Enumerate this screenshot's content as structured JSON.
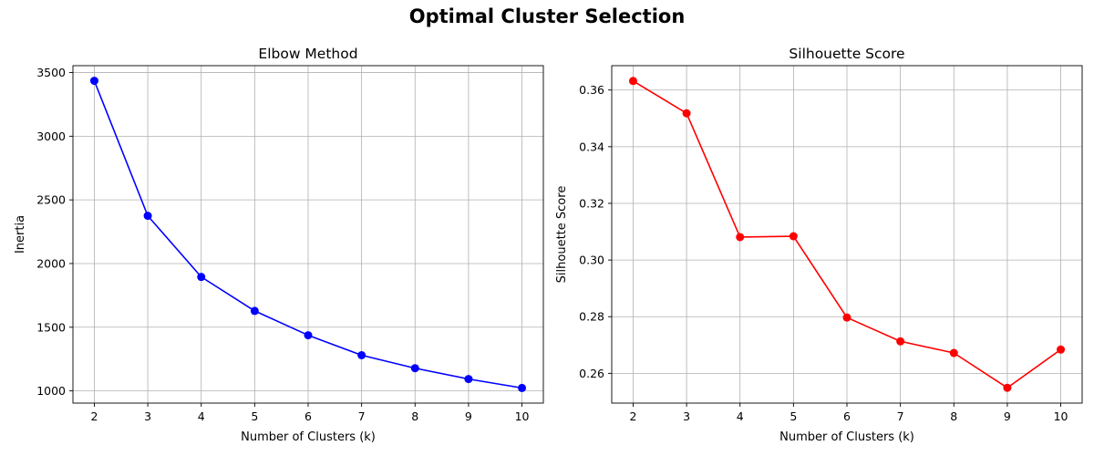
{
  "figure": {
    "suptitle": "Optimal Cluster Selection"
  },
  "chart_data": [
    {
      "type": "line",
      "title": "Elbow Method",
      "xlabel": "Number of Clusters (k)",
      "ylabel": "Inertia",
      "x": [
        2,
        3,
        4,
        5,
        6,
        7,
        8,
        9,
        10
      ],
      "series": [
        {
          "values": [
            3435,
            2375,
            1895,
            1628,
            1437,
            1280,
            1178,
            1093,
            1023
          ],
          "color": "#0000ff",
          "marker": "circle"
        }
      ],
      "xlim": [
        1.6,
        10.4
      ],
      "ylim": [
        904,
        3554
      ],
      "xticks": [
        2,
        3,
        4,
        5,
        6,
        7,
        8,
        9,
        10
      ],
      "yticks": [
        1000,
        1500,
        2000,
        2500,
        3000,
        3500
      ],
      "grid": true
    },
    {
      "type": "line",
      "title": "Silhouette Score",
      "xlabel": "Number of Clusters (k)",
      "ylabel": "Silhouette Score",
      "x": [
        2,
        3,
        4,
        5,
        6,
        7,
        8,
        9,
        10
      ],
      "series": [
        {
          "values": [
            0.3632,
            0.3518,
            0.3081,
            0.3084,
            0.2797,
            0.2713,
            0.2672,
            0.2549,
            0.2684
          ],
          "color": "#ff0000",
          "marker": "circle"
        }
      ],
      "xlim": [
        1.6,
        10.4
      ],
      "ylim": [
        0.2495,
        0.3686
      ],
      "xticks": [
        2,
        3,
        4,
        5,
        6,
        7,
        8,
        9,
        10
      ],
      "yticks": [
        0.26,
        0.28,
        0.3,
        0.32,
        0.34,
        0.36
      ],
      "ytick_labels": [
        "0.26",
        "0.28",
        "0.30",
        "0.32",
        "0.34",
        "0.36"
      ],
      "grid": true
    }
  ]
}
